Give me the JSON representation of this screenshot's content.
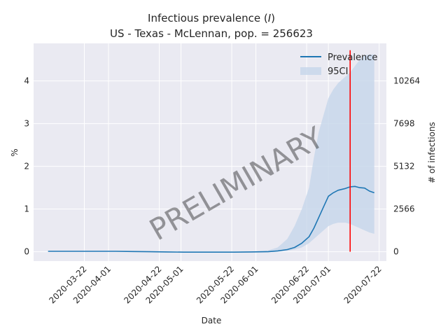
{
  "chart_data": {
    "type": "line",
    "title_line1": "Infectious prevalence (",
    "title_var": "I",
    "title_line1_end": ")",
    "title_line2": "US - Texas - McLennan, pop. = 256623",
    "xlabel": "Date",
    "ylabel_left": "%",
    "ylabel_right": "# of infections",
    "watermark": "PRELIMINARY",
    "x_ticks": [
      "2020-03-22",
      "2020-04-01",
      "2020-04-22",
      "2020-05-01",
      "2020-05-22",
      "2020-06-01",
      "2020-06-22",
      "2020-07-01",
      "2020-07-22"
    ],
    "y_ticks_left": [
      "0",
      "1",
      "2",
      "3",
      "4"
    ],
    "y_ticks_right": [
      "0",
      "2566",
      "5132",
      "7698",
      "10264"
    ],
    "ylim_left": [
      -0.22,
      4.88
    ],
    "xlim": [
      "2020-03-01",
      "2020-07-25"
    ],
    "legend": {
      "position": "top-right",
      "entries": [
        {
          "label": "Prevalence",
          "style": "line",
          "color": "#1f77b4"
        },
        {
          "label": "95CI",
          "style": "band",
          "color": "#c6d6ea"
        }
      ]
    },
    "vertical_marker": {
      "date": "2020-07-10",
      "color": "#ff0000"
    },
    "series": [
      {
        "name": "Prevalence",
        "color": "#1f77b4",
        "x": [
          "2020-03-07",
          "2020-03-14",
          "2020-03-21",
          "2020-03-28",
          "2020-04-04",
          "2020-04-11",
          "2020-04-18",
          "2020-04-25",
          "2020-05-02",
          "2020-05-09",
          "2020-05-16",
          "2020-05-23",
          "2020-05-30",
          "2020-06-06",
          "2020-06-10",
          "2020-06-14",
          "2020-06-17",
          "2020-06-20",
          "2020-06-23",
          "2020-06-25",
          "2020-06-27",
          "2020-06-29",
          "2020-07-01",
          "2020-07-03",
          "2020-07-05",
          "2020-07-08",
          "2020-07-10",
          "2020-07-12",
          "2020-07-14",
          "2020-07-16",
          "2020-07-18",
          "2020-07-20"
        ],
        "y": [
          0.01,
          0.01,
          0.01,
          0.01,
          0.01,
          0.005,
          0.0,
          -0.005,
          -0.01,
          -0.01,
          -0.01,
          -0.01,
          -0.005,
          0.0,
          0.02,
          0.05,
          0.1,
          0.2,
          0.35,
          0.55,
          0.8,
          1.05,
          1.3,
          1.38,
          1.44,
          1.48,
          1.52,
          1.53,
          1.5,
          1.49,
          1.42,
          1.38
        ]
      }
    ],
    "ci_band": {
      "x": [
        "2020-03-07",
        "2020-03-14",
        "2020-03-21",
        "2020-03-28",
        "2020-04-04",
        "2020-04-11",
        "2020-04-18",
        "2020-04-25",
        "2020-05-02",
        "2020-05-09",
        "2020-05-16",
        "2020-05-23",
        "2020-05-30",
        "2020-06-06",
        "2020-06-10",
        "2020-06-14",
        "2020-06-17",
        "2020-06-20",
        "2020-06-23",
        "2020-06-25",
        "2020-06-27",
        "2020-06-29",
        "2020-07-01",
        "2020-07-03",
        "2020-07-05",
        "2020-07-08",
        "2020-07-10",
        "2020-07-12",
        "2020-07-14",
        "2020-07-16",
        "2020-07-18",
        "2020-07-20"
      ],
      "lower": [
        0.0,
        0.0,
        0.0,
        0.0,
        0.0,
        0.0,
        0.0,
        -0.005,
        -0.01,
        -0.01,
        -0.01,
        -0.01,
        -0.01,
        -0.005,
        0.0,
        0.02,
        0.05,
        0.1,
        0.2,
        0.3,
        0.4,
        0.5,
        0.6,
        0.65,
        0.68,
        0.68,
        0.65,
        0.6,
        0.55,
        0.5,
        0.45,
        0.42
      ],
      "upper": [
        0.02,
        0.02,
        0.02,
        0.02,
        0.02,
        0.015,
        0.01,
        0.005,
        0.0,
        0.0,
        0.0,
        0.0,
        0.005,
        0.03,
        0.1,
        0.3,
        0.6,
        1.0,
        1.5,
        2.2,
        2.8,
        3.2,
        3.6,
        3.8,
        3.95,
        4.1,
        4.2,
        4.35,
        4.5,
        4.6,
        4.62,
        4.62
      ]
    }
  }
}
